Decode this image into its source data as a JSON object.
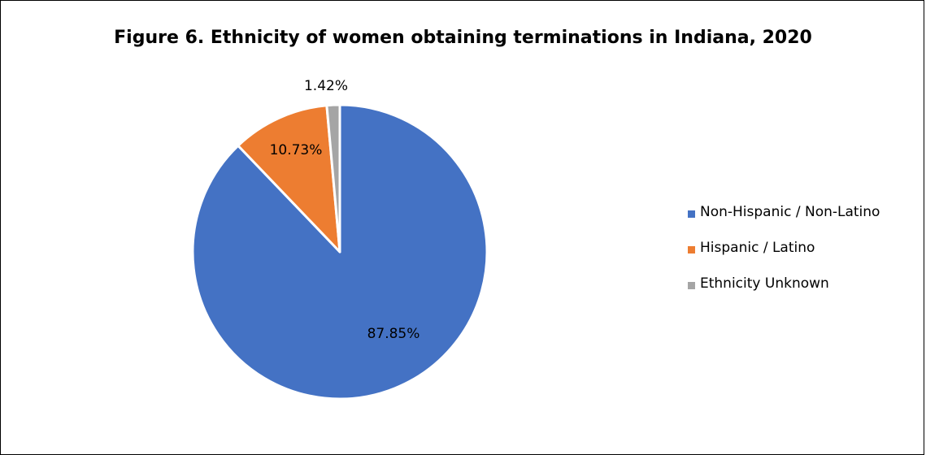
{
  "chart_data": {
    "type": "pie",
    "title": "Figure 6. Ethnicity of women obtaining terminations in Indiana, 2020",
    "legend_position": "right",
    "slices": [
      {
        "label": "Non-Hispanic / Non-Latino",
        "value": 87.85,
        "display": "87.85%",
        "color": "#4472C4"
      },
      {
        "label": "Hispanic / Latino",
        "value": 10.73,
        "display": "10.73%",
        "color": "#ED7D31"
      },
      {
        "label": "Ethnicity Unknown",
        "value": 1.42,
        "display": "1.42%",
        "color": "#A5A5A5"
      }
    ]
  }
}
